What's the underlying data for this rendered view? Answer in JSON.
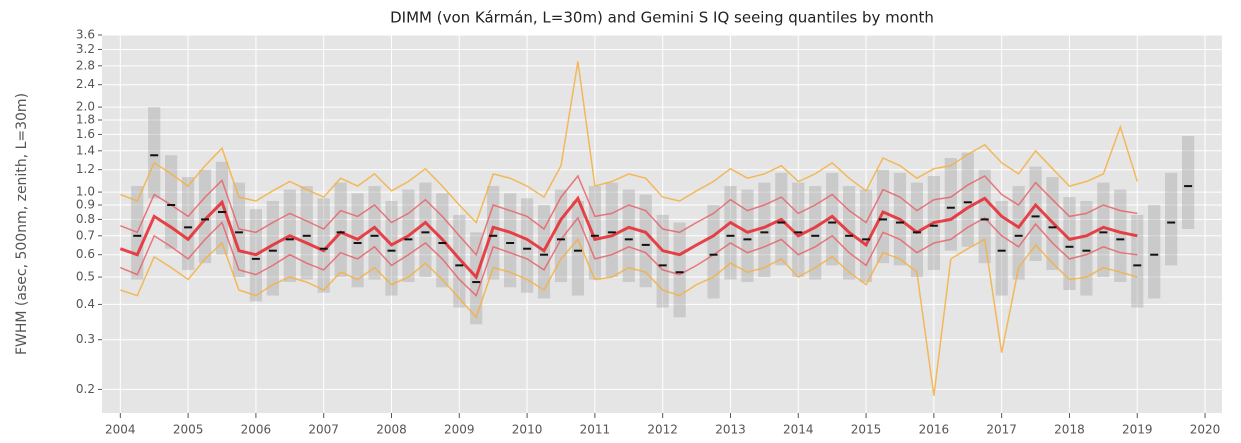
{
  "chart_data": {
    "type": "line",
    "title": "DIMM (von Kármán, L=30m) and Gemini S IQ seeing quantiles by month",
    "y_label": "FWHM (asec, 500nm, zenith, L=30m)",
    "log_y": true,
    "grid": true,
    "xlim": [
      2003.73,
      2020.25
    ],
    "ylim": [
      0.165,
      3.6
    ],
    "xticks": [
      2004,
      2005,
      2006,
      2007,
      2008,
      2009,
      2010,
      2011,
      2012,
      2013,
      2014,
      2015,
      2016,
      2017,
      2018,
      2019,
      2020
    ],
    "yticks": [
      0.2,
      0.3,
      0.4,
      0.5,
      0.6,
      0.7,
      0.8,
      0.9,
      {
        "value": 1,
        "label": "1.0"
      },
      1.2,
      1.4,
      1.6,
      1.8,
      {
        "value": 2,
        "label": "2.0"
      },
      2.4,
      2.8,
      3.2,
      3.6
    ],
    "x": [
      2004,
      2004.25,
      2004.5,
      2004.75,
      2005,
      2005.25,
      2005.5,
      2005.75,
      2006,
      2006.25,
      2006.5,
      2006.75,
      2007,
      2007.25,
      2007.5,
      2007.75,
      2008,
      2008.25,
      2008.5,
      2008.75,
      2009,
      2009.25,
      2009.5,
      2009.75,
      2010,
      2010.25,
      2010.5,
      2010.75,
      2011,
      2011.25,
      2011.5,
      2011.75,
      2012,
      2012.25,
      2012.5,
      2012.75,
      2013,
      2013.25,
      2013.5,
      2013.75,
      2014,
      2014.25,
      2014.5,
      2014.75,
      2015,
      2015.25,
      2015.5,
      2015.75,
      2016,
      2016.25,
      2016.5,
      2016.75,
      2017,
      2017.25,
      2017.5,
      2017.75,
      2018,
      2018.25,
      2018.5,
      2018.75,
      2019,
      2019.25,
      2019.5,
      2019.75
    ],
    "boxes": {
      "color": "#999999",
      "median_color": "#111111",
      "low": [
        null,
        0.49,
        0.95,
        0.63,
        0.53,
        0.56,
        0.6,
        0.5,
        0.41,
        0.43,
        0.48,
        0.49,
        0.44,
        0.5,
        0.46,
        0.49,
        0.43,
        0.48,
        0.5,
        0.46,
        0.39,
        0.34,
        0.49,
        0.46,
        0.44,
        0.42,
        0.48,
        0.43,
        0.49,
        0.5,
        0.48,
        0.46,
        0.39,
        0.36,
        null,
        0.42,
        0.49,
        0.48,
        0.5,
        0.55,
        0.5,
        0.49,
        0.55,
        0.49,
        0.48,
        0.56,
        0.55,
        0.5,
        0.53,
        0.62,
        0.64,
        0.56,
        0.43,
        0.49,
        0.57,
        0.53,
        0.45,
        0.43,
        0.5,
        0.48,
        0.39,
        0.42,
        0.55,
        0.74
      ],
      "high": [
        null,
        1.05,
        2.0,
        1.35,
        1.13,
        1.2,
        1.28,
        1.08,
        0.87,
        0.93,
        1.02,
        1.05,
        0.95,
        1.08,
        0.99,
        1.05,
        0.93,
        1.02,
        1.08,
        0.99,
        0.83,
        0.72,
        1.05,
        0.99,
        0.95,
        0.9,
        1.02,
        0.93,
        1.05,
        1.08,
        1.02,
        0.98,
        0.83,
        0.78,
        null,
        0.9,
        1.05,
        1.02,
        1.08,
        1.17,
        1.08,
        1.05,
        1.17,
        1.05,
        1.02,
        1.2,
        1.17,
        1.08,
        1.14,
        1.32,
        1.38,
        1.2,
        0.93,
        1.05,
        1.23,
        1.13,
        0.96,
        0.93,
        1.08,
        1.02,
        0.83,
        0.9,
        1.17,
        1.58
      ],
      "median": [
        null,
        0.7,
        1.35,
        0.9,
        0.75,
        0.8,
        0.85,
        0.72,
        0.58,
        0.62,
        0.68,
        0.7,
        0.63,
        0.72,
        0.66,
        0.7,
        0.62,
        0.68,
        0.72,
        0.66,
        0.55,
        0.48,
        0.7,
        0.66,
        0.63,
        0.6,
        0.68,
        0.62,
        0.7,
        0.72,
        0.68,
        0.65,
        0.55,
        0.52,
        null,
        0.6,
        0.7,
        0.68,
        0.72,
        0.78,
        0.72,
        0.7,
        0.78,
        0.7,
        0.68,
        0.8,
        0.78,
        0.72,
        0.76,
        0.88,
        0.92,
        0.8,
        0.62,
        0.7,
        0.82,
        0.75,
        0.64,
        0.62,
        0.72,
        0.68,
        0.55,
        0.6,
        0.78,
        1.05
      ]
    },
    "series": [
      {
        "color": "#f5b041",
        "line_width": 1.5,
        "values": [
          0.45,
          0.43,
          0.59,
          0.54,
          0.49,
          0.58,
          0.66,
          0.45,
          0.43,
          0.47,
          0.5,
          0.48,
          0.45,
          0.52,
          0.49,
          0.54,
          0.47,
          0.5,
          0.56,
          0.49,
          0.42,
          0.36,
          0.54,
          0.52,
          0.49,
          0.45,
          0.58,
          0.68,
          0.49,
          0.5,
          0.54,
          0.52,
          0.45,
          0.43,
          0.47,
          0.5,
          0.56,
          0.52,
          0.54,
          0.58,
          0.5,
          0.54,
          0.59,
          0.52,
          0.47,
          0.61,
          0.58,
          0.52,
          0.19,
          0.58,
          0.63,
          0.68,
          0.27,
          0.54,
          0.65,
          0.56,
          0.49,
          0.5,
          0.54,
          0.52,
          0.5,
          null,
          null,
          null
        ]
      },
      {
        "color": "#f5b041",
        "line_width": 1.5,
        "values": [
          0.98,
          0.93,
          1.27,
          1.16,
          1.05,
          1.24,
          1.43,
          0.96,
          0.93,
          1.01,
          1.09,
          1.02,
          0.96,
          1.12,
          1.05,
          1.16,
          1.01,
          1.09,
          1.21,
          1.05,
          0.9,
          0.78,
          1.16,
          1.12,
          1.05,
          0.96,
          1.24,
          2.9,
          1.05,
          1.09,
          1.16,
          1.12,
          0.96,
          0.93,
          1.01,
          1.09,
          1.21,
          1.12,
          1.16,
          1.24,
          1.09,
          1.16,
          1.27,
          1.12,
          1.01,
          1.32,
          1.24,
          1.12,
          1.21,
          1.24,
          1.36,
          1.47,
          1.27,
          1.16,
          1.4,
          1.21,
          1.05,
          1.09,
          1.16,
          1.7,
          1.09,
          null,
          null,
          null
        ]
      },
      {
        "color": "#e8636a",
        "line_width": 1.5,
        "values": [
          0.54,
          0.51,
          0.7,
          0.64,
          0.58,
          0.68,
          0.78,
          0.53,
          0.51,
          0.55,
          0.6,
          0.56,
          0.53,
          0.61,
          0.58,
          0.64,
          0.55,
          0.6,
          0.66,
          0.58,
          0.49,
          0.43,
          0.64,
          0.61,
          0.58,
          0.53,
          0.68,
          0.81,
          0.58,
          0.6,
          0.64,
          0.61,
          0.53,
          0.51,
          0.55,
          0.6,
          0.66,
          0.61,
          0.64,
          0.68,
          0.6,
          0.64,
          0.7,
          0.61,
          0.55,
          0.72,
          0.68,
          0.61,
          0.66,
          0.68,
          0.75,
          0.81,
          0.7,
          0.64,
          0.77,
          0.66,
          0.58,
          0.6,
          0.64,
          0.61,
          0.6,
          null,
          null,
          null
        ]
      },
      {
        "color": "#e8636a",
        "line_width": 1.5,
        "values": [
          0.76,
          0.72,
          0.98,
          0.9,
          0.82,
          0.96,
          1.1,
          0.74,
          0.72,
          0.78,
          0.84,
          0.79,
          0.74,
          0.86,
          0.82,
          0.9,
          0.78,
          0.84,
          0.94,
          0.82,
          0.7,
          0.6,
          0.9,
          0.86,
          0.82,
          0.74,
          0.96,
          1.14,
          0.82,
          0.84,
          0.9,
          0.86,
          0.74,
          0.72,
          0.78,
          0.84,
          0.94,
          0.86,
          0.9,
          0.96,
          0.84,
          0.9,
          0.98,
          0.86,
          0.78,
          1.02,
          0.96,
          0.86,
          0.94,
          0.96,
          1.06,
          1.14,
          0.98,
          0.9,
          1.08,
          0.94,
          0.82,
          0.84,
          0.9,
          0.86,
          0.84,
          null,
          null,
          null
        ]
      },
      {
        "color": "#e8262d",
        "line_width": 3,
        "values": [
          0.63,
          0.6,
          0.82,
          0.75,
          0.68,
          0.8,
          0.92,
          0.62,
          0.6,
          0.65,
          0.7,
          0.66,
          0.62,
          0.72,
          0.68,
          0.75,
          0.65,
          0.7,
          0.78,
          0.68,
          0.58,
          0.5,
          0.75,
          0.72,
          0.68,
          0.62,
          0.8,
          0.95,
          0.68,
          0.7,
          0.75,
          0.72,
          0.62,
          0.6,
          0.65,
          0.7,
          0.78,
          0.72,
          0.75,
          0.8,
          0.7,
          0.75,
          0.82,
          0.72,
          0.65,
          0.85,
          0.8,
          0.72,
          0.78,
          0.8,
          0.88,
          0.95,
          0.82,
          0.75,
          0.9,
          0.78,
          0.68,
          0.7,
          0.75,
          0.72,
          0.7,
          null,
          null,
          null
        ]
      }
    ]
  }
}
